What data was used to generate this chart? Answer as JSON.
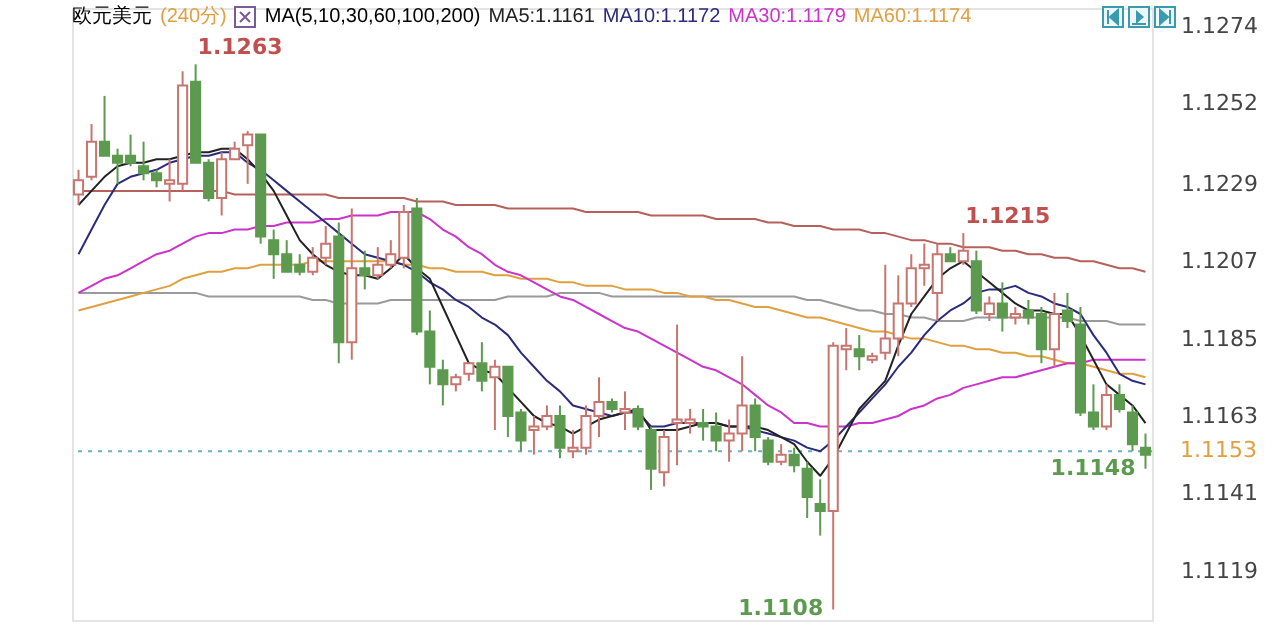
{
  "chart_data": {
    "type": "candlestick",
    "title": "欧元美元",
    "subtitle": "(240分)",
    "annotations": [
      "MA(5,10,30,60,100,200)",
      "1.1263",
      "1.1215",
      "1.1148",
      "1.1108"
    ],
    "categories": [
      null,
      null,
      null,
      null,
      null,
      null,
      null,
      null,
      null,
      null,
      null,
      null,
      null,
      null,
      null,
      null,
      null,
      null,
      null,
      null,
      null,
      null,
      null,
      null,
      null,
      null,
      null,
      null,
      null,
      null,
      null,
      null,
      null,
      null,
      null,
      null,
      null,
      null,
      null,
      null,
      null,
      null,
      null,
      null,
      null,
      null,
      null,
      null,
      null,
      null,
      null,
      null,
      null,
      null,
      null,
      null,
      null,
      null,
      null,
      null,
      null,
      null,
      null,
      null,
      null,
      null,
      null,
      null,
      null,
      null,
      null,
      null,
      null,
      null,
      null,
      null,
      null,
      null,
      null,
      null,
      null,
      null,
      null
    ],
    "ohlc": [
      [
        1.1226,
        1.1233,
        1.1223,
        1.123
      ],
      [
        1.1231,
        1.1246,
        1.123,
        1.1241
      ],
      [
        1.1241,
        1.1254,
        1.1237,
        1.1237
      ],
      [
        1.1237,
        1.1239,
        1.1229,
        1.1235
      ],
      [
        1.1237,
        1.1243,
        1.1234,
        1.1235
      ],
      [
        1.1234,
        1.1241,
        1.123,
        1.1232
      ],
      [
        1.1232,
        1.1233,
        1.1228,
        1.123
      ],
      [
        1.1229,
        1.1236,
        1.1224,
        1.123
      ],
      [
        1.1229,
        1.1261,
        1.1227,
        1.1257
      ],
      [
        1.1258,
        1.1263,
        1.1235,
        1.1235
      ],
      [
        1.1235,
        1.1236,
        1.1224,
        1.1225
      ],
      [
        1.1225,
        1.1238,
        1.122,
        1.1236
      ],
      [
        1.1236,
        1.1241,
        1.1236,
        1.1239
      ],
      [
        1.124,
        1.1244,
        1.1229,
        1.1243
      ],
      [
        1.1243,
        1.1243,
        1.1212,
        1.1214
      ],
      [
        1.1213,
        1.1216,
        1.1202,
        1.1209
      ],
      [
        1.1209,
        1.1213,
        1.1204,
        1.1204
      ],
      [
        1.1206,
        1.1209,
        1.1203,
        1.1204
      ],
      [
        1.1204,
        1.1211,
        1.1203,
        1.1208
      ],
      [
        1.1208,
        1.1217,
        1.1206,
        1.1212
      ],
      [
        1.1214,
        1.1218,
        1.1178,
        1.1184
      ],
      [
        1.1184,
        1.1222,
        1.1179,
        1.1205
      ],
      [
        1.1205,
        1.121,
        1.1199,
        1.1203
      ],
      [
        1.1203,
        1.1211,
        1.1202,
        1.1206
      ],
      [
        1.1206,
        1.1213,
        1.1205,
        1.1209
      ],
      [
        1.1208,
        1.1223,
        1.1205,
        1.1221
      ],
      [
        1.1222,
        1.1225,
        1.1186,
        1.1187
      ],
      [
        1.1187,
        1.1193,
        1.1172,
        1.1177
      ],
      [
        1.1176,
        1.1179,
        1.1166,
        1.1172
      ],
      [
        1.1172,
        1.1175,
        1.117,
        1.1174
      ],
      [
        1.1175,
        1.1178,
        1.1173,
        1.1178
      ],
      [
        1.1178,
        1.1184,
        1.117,
        1.1173
      ],
      [
        1.1174,
        1.1179,
        1.1159,
        1.1177
      ],
      [
        1.1177,
        1.1177,
        1.1157,
        1.1163
      ],
      [
        1.1164,
        1.1165,
        1.1153,
        1.1156
      ],
      [
        1.1159,
        1.1163,
        1.1152,
        1.116
      ],
      [
        1.116,
        1.1166,
        1.1159,
        1.1163
      ],
      [
        1.1163,
        1.1166,
        1.1151,
        1.1154
      ],
      [
        1.1153,
        1.1159,
        1.1151,
        1.1154
      ],
      [
        1.1154,
        1.1166,
        1.1152,
        1.1163
      ],
      [
        1.1163,
        1.1174,
        1.1157,
        1.1167
      ],
      [
        1.1167,
        1.1168,
        1.1164,
        1.1165
      ],
      [
        1.1164,
        1.117,
        1.1159,
        1.1165
      ],
      [
        1.1165,
        1.1166,
        1.1159,
        1.116
      ],
      [
        1.1159,
        1.116,
        1.1142,
        1.1148
      ],
      [
        1.1147,
        1.1159,
        1.1143,
        1.1157
      ],
      [
        1.1161,
        1.1189,
        1.1149,
        1.1162
      ],
      [
        1.1161,
        1.1165,
        1.1158,
        1.1162
      ],
      [
        1.1161,
        1.1165,
        1.1156,
        1.116
      ],
      [
        1.116,
        1.1164,
        1.1153,
        1.1156
      ],
      [
        1.1156,
        1.1162,
        1.115,
        1.1158
      ],
      [
        1.1158,
        1.118,
        1.1153,
        1.1166
      ],
      [
        1.1166,
        1.1168,
        1.1153,
        1.1157
      ],
      [
        1.1156,
        1.1157,
        1.1149,
        1.115
      ],
      [
        1.115,
        1.1155,
        1.1149,
        1.1152
      ],
      [
        1.1152,
        1.1154,
        1.1147,
        1.1149
      ],
      [
        1.1148,
        1.115,
        1.1134,
        1.114
      ],
      [
        1.1138,
        1.1145,
        1.1129,
        1.1136
      ],
      [
        1.1136,
        1.1184,
        1.1108,
        1.1183
      ],
      [
        1.1182,
        1.1188,
        1.1176,
        1.1183
      ],
      [
        1.1182,
        1.1186,
        1.1176,
        1.118
      ],
      [
        1.1179,
        1.1181,
        1.1178,
        1.118
      ],
      [
        1.1181,
        1.1206,
        1.1179,
        1.1185
      ],
      [
        1.1185,
        1.1203,
        1.118,
        1.1195
      ],
      [
        1.1195,
        1.1209,
        1.1194,
        1.1205
      ],
      [
        1.1205,
        1.1212,
        1.12,
        1.1206
      ],
      [
        1.1198,
        1.1212,
        1.119,
        1.1209
      ],
      [
        1.1209,
        1.1211,
        1.1207,
        1.1207
      ],
      [
        1.1207,
        1.1215,
        1.1206,
        1.121
      ],
      [
        1.1207,
        1.121,
        1.1192,
        1.1193
      ],
      [
        1.1192,
        1.1197,
        1.119,
        1.1195
      ],
      [
        1.1195,
        1.1201,
        1.1187,
        1.1191
      ],
      [
        1.1191,
        1.1194,
        1.1189,
        1.1192
      ],
      [
        1.1193,
        1.1196,
        1.1189,
        1.1191
      ],
      [
        1.1192,
        1.1194,
        1.1178,
        1.1182
      ],
      [
        1.1182,
        1.1198,
        1.1177,
        1.1192
      ],
      [
        1.1193,
        1.1198,
        1.1188,
        1.119
      ],
      [
        1.1189,
        1.1194,
        1.1163,
        1.1164
      ],
      [
        1.1164,
        1.1172,
        1.1159,
        1.116
      ],
      [
        1.116,
        1.1172,
        1.1159,
        1.1169
      ],
      [
        1.1169,
        1.1172,
        1.1164,
        1.1165
      ],
      [
        1.1164,
        1.1166,
        1.1153,
        1.1155
      ],
      [
        1.1154,
        1.1158,
        1.1148,
        1.1152
      ]
    ],
    "colors": [
      "#c8756f",
      "#c8756f",
      "#5c9a4f",
      "#5c9a4f",
      "#5c9a4f",
      "#5c9a4f",
      "#5c9a4f",
      "#c8756f",
      "#c8756f",
      "#5c9a4f",
      "#5c9a4f",
      "#c8756f",
      "#c8756f",
      "#c8756f",
      "#5c9a4f",
      "#5c9a4f",
      "#5c9a4f",
      "#5c9a4f",
      "#c8756f",
      "#c8756f",
      "#5c9a4f",
      "#c8756f",
      "#5c9a4f",
      "#c8756f",
      "#c8756f",
      "#c8756f",
      "#5c9a4f",
      "#5c9a4f",
      "#5c9a4f",
      "#c8756f",
      "#c8756f",
      "#5c9a4f",
      "#c8756f",
      "#5c9a4f",
      "#5c9a4f",
      "#c8756f",
      "#c8756f",
      "#5c9a4f",
      "#c8756f",
      "#c8756f",
      "#c8756f",
      "#5c9a4f",
      "#c8756f",
      "#5c9a4f",
      "#5c9a4f",
      "#c8756f",
      "#c8756f",
      "#c8756f",
      "#5c9a4f",
      "#5c9a4f",
      "#c8756f",
      "#c8756f",
      "#5c9a4f",
      "#5c9a4f",
      "#c8756f",
      "#5c9a4f",
      "#5c9a4f",
      "#5c9a4f",
      "#c8756f",
      "#c8756f",
      "#5c9a4f",
      "#c8756f",
      "#c8756f",
      "#c8756f",
      "#c8756f",
      "#c8756f",
      "#c8756f",
      "#5c9a4f",
      "#c8756f",
      "#5c9a4f",
      "#c8756f",
      "#5c9a4f",
      "#c8756f",
      "#5c9a4f",
      "#5c9a4f",
      "#c8756f",
      "#5c9a4f",
      "#5c9a4f",
      "#5c9a4f",
      "#c8756f",
      "#5c9a4f",
      "#5c9a4f",
      "#5c9a4f"
    ],
    "series": [
      {
        "type": "line",
        "color": "#b5605a",
        "values": [
          1.1227,
          1.1227,
          1.1227,
          1.1227,
          1.1227,
          1.1227,
          1.1227,
          1.1227,
          1.1227,
          1.1227,
          1.1227,
          1.1227,
          1.1226,
          1.1226,
          1.1226,
          1.1226,
          1.1226,
          1.1226,
          1.1226,
          1.1226,
          1.1225,
          1.1225,
          1.1225,
          1.1225,
          1.1225,
          1.1225,
          1.1224,
          1.1224,
          1.1224,
          1.1223,
          1.1223,
          1.1223,
          1.1223,
          1.1222,
          1.1222,
          1.1222,
          1.1222,
          1.1222,
          1.1222,
          1.1221,
          1.1221,
          1.1221,
          1.1221,
          1.1221,
          1.122,
          1.122,
          1.122,
          1.122,
          1.122,
          1.1219,
          1.1219,
          1.1219,
          1.1219,
          1.1218,
          1.1218,
          1.1217,
          1.1217,
          1.1217,
          1.1216,
          1.1216,
          1.1216,
          1.1215,
          1.1215,
          1.1214,
          1.1213,
          1.1213,
          1.1212,
          1.1212,
          1.1211,
          1.1211,
          1.1211,
          1.121,
          1.121,
          1.1209,
          1.1209,
          1.1208,
          1.1208,
          1.1207,
          1.1207,
          1.1206,
          1.1205,
          1.1205,
          1.1204
        ]
      },
      {
        "type": "line",
        "color": "#9a9a9a",
        "values": [
          1.1198,
          1.1198,
          1.1198,
          1.1198,
          1.1198,
          1.1198,
          1.1198,
          1.1198,
          1.1198,
          1.1198,
          1.1197,
          1.1197,
          1.1197,
          1.1197,
          1.1197,
          1.1197,
          1.1197,
          1.1197,
          1.1196,
          1.1196,
          1.1195,
          1.1195,
          1.1195,
          1.1195,
          1.1196,
          1.1196,
          1.1196,
          1.1196,
          1.1196,
          1.1196,
          1.1196,
          1.1196,
          1.1196,
          1.1197,
          1.1197,
          1.1197,
          1.1197,
          1.1198,
          1.1198,
          1.1198,
          1.1198,
          1.1197,
          1.1197,
          1.1197,
          1.1197,
          1.1197,
          1.1197,
          1.1197,
          1.1197,
          1.1197,
          1.1197,
          1.1197,
          1.1197,
          1.1197,
          1.1197,
          1.1197,
          1.1196,
          1.1196,
          1.1195,
          1.1194,
          1.1193,
          1.1193,
          1.1192,
          1.1192,
          1.1191,
          1.1191,
          1.119,
          1.119,
          1.119,
          1.1191,
          1.1191,
          1.1191,
          1.1191,
          1.1191,
          1.1191,
          1.1191,
          1.1191,
          1.119,
          1.119,
          1.119,
          1.1189,
          1.1189,
          1.1189
        ]
      },
      {
        "type": "line",
        "name": "MA60:1.1174",
        "color": "#e0a040",
        "values": [
          1.1193,
          1.1194,
          1.1195,
          1.1196,
          1.1197,
          1.1198,
          1.1199,
          1.12,
          1.1202,
          1.1203,
          1.1204,
          1.1204,
          1.1205,
          1.1205,
          1.1206,
          1.1206,
          1.1206,
          1.1206,
          1.1207,
          1.1207,
          1.1207,
          1.1207,
          1.1207,
          1.1207,
          1.1207,
          1.1206,
          1.1206,
          1.1205,
          1.1205,
          1.1204,
          1.1204,
          1.1204,
          1.1203,
          1.1203,
          1.1202,
          1.1202,
          1.1202,
          1.1201,
          1.1201,
          1.12,
          1.12,
          1.12,
          1.1199,
          1.1199,
          1.1199,
          1.1198,
          1.1198,
          1.1197,
          1.1197,
          1.1196,
          1.1196,
          1.1195,
          1.1194,
          1.1194,
          1.1193,
          1.1192,
          1.1191,
          1.1191,
          1.119,
          1.1189,
          1.1188,
          1.1187,
          1.1187,
          1.1186,
          1.1185,
          1.1185,
          1.1184,
          1.1183,
          1.1183,
          1.1182,
          1.1182,
          1.1181,
          1.1181,
          1.118,
          1.118,
          1.1179,
          1.1178,
          1.1178,
          1.1177,
          1.1176,
          1.1175,
          1.1175,
          1.1174
        ]
      },
      {
        "type": "line",
        "name": "MA30:1.1179",
        "color": "#cc33cc",
        "values": [
          1.1198,
          1.12,
          1.1202,
          1.1203,
          1.1205,
          1.1207,
          1.1209,
          1.121,
          1.1212,
          1.1214,
          1.1215,
          1.1215,
          1.1216,
          1.1216,
          1.1217,
          1.1217,
          1.1218,
          1.1218,
          1.1218,
          1.1219,
          1.1219,
          1.122,
          1.122,
          1.122,
          1.1221,
          1.1221,
          1.1221,
          1.1219,
          1.1216,
          1.1214,
          1.1211,
          1.1209,
          1.1206,
          1.1204,
          1.1203,
          1.1201,
          1.1199,
          1.1197,
          1.1196,
          1.1194,
          1.1192,
          1.119,
          1.1188,
          1.1187,
          1.1185,
          1.1183,
          1.1181,
          1.1179,
          1.1177,
          1.1176,
          1.1174,
          1.1172,
          1.1169,
          1.1166,
          1.1164,
          1.1161,
          1.1161,
          1.116,
          1.116,
          1.116,
          1.1161,
          1.1161,
          1.1162,
          1.1163,
          1.1165,
          1.1166,
          1.1168,
          1.1169,
          1.1171,
          1.1172,
          1.1173,
          1.1174,
          1.1174,
          1.1175,
          1.1176,
          1.1177,
          1.1178,
          1.1178,
          1.1179,
          1.1179,
          1.1179,
          1.1179,
          1.1179
        ]
      },
      {
        "type": "line",
        "name": "MA10:1.1172",
        "color": "#2b2b7a",
        "values": [
          1.1209,
          1.1216,
          1.1223,
          1.1229,
          1.1231,
          1.1232,
          1.1233,
          1.1235,
          1.1236,
          1.1237,
          1.1237,
          1.1238,
          1.1238,
          1.1235,
          1.1233,
          1.123,
          1.1227,
          1.1224,
          1.1221,
          1.1218,
          1.1215,
          1.1212,
          1.1209,
          1.1208,
          1.1207,
          1.1206,
          1.1204,
          1.1201,
          1.1199,
          1.1196,
          1.1194,
          1.1191,
          1.1189,
          1.1186,
          1.1181,
          1.1177,
          1.1173,
          1.117,
          1.1166,
          1.1165,
          1.1164,
          1.1163,
          1.1164,
          1.1164,
          1.116,
          1.116,
          1.1161,
          1.1161,
          1.1161,
          1.1161,
          1.116,
          1.116,
          1.1159,
          1.1158,
          1.1157,
          1.1156,
          1.1154,
          1.1153,
          1.1156,
          1.116,
          1.1164,
          1.1168,
          1.1172,
          1.1177,
          1.1181,
          1.1186,
          1.119,
          1.1193,
          1.1195,
          1.1198,
          1.1199,
          1.1199,
          1.12,
          1.1198,
          1.1197,
          1.1195,
          1.1194,
          1.1192,
          1.1186,
          1.1181,
          1.1175,
          1.1173,
          1.1172
        ]
      },
      {
        "type": "line",
        "name": "MA5:1.1161",
        "color": "#222222",
        "values": [
          1.1223,
          1.1227,
          1.1231,
          1.1234,
          1.1235,
          1.1235,
          1.1236,
          1.1236,
          1.1237,
          1.1238,
          1.1238,
          1.1239,
          1.1239,
          1.1236,
          1.1232,
          1.1227,
          1.122,
          1.1213,
          1.1209,
          1.1206,
          1.1204,
          1.1203,
          1.1203,
          1.1202,
          1.1205,
          1.1209,
          1.1205,
          1.1202,
          1.1194,
          1.1186,
          1.1178,
          1.1176,
          1.1175,
          1.1171,
          1.1167,
          1.1163,
          1.1161,
          1.116,
          1.1158,
          1.116,
          1.1162,
          1.1163,
          1.1164,
          1.1165,
          1.1159,
          1.1159,
          1.1159,
          1.116,
          1.1161,
          1.1161,
          1.116,
          1.116,
          1.116,
          1.1159,
          1.1157,
          1.1155,
          1.115,
          1.1146,
          1.1151,
          1.1158,
          1.1165,
          1.1169,
          1.1173,
          1.1183,
          1.1192,
          1.1197,
          1.1202,
          1.1205,
          1.1207,
          1.1204,
          1.1201,
          1.1198,
          1.1195,
          1.1193,
          1.1193,
          1.1192,
          1.1192,
          1.1186,
          1.1179,
          1.1172,
          1.1169,
          1.1166,
          1.1161
        ]
      }
    ],
    "ylim": [
      1.1105,
      1.1279
    ],
    "yticks": [
      1.1274,
      1.1252,
      1.1229,
      1.1207,
      1.1185,
      1.1163,
      1.1141,
      1.1119
    ],
    "tick_labels": "y",
    "legend": "top",
    "ref_lines": [
      {
        "axis": "y",
        "value": 1.1153,
        "label": "1.1153",
        "color": "#6aaed0",
        "line_style": "dotted"
      }
    ]
  }
}
